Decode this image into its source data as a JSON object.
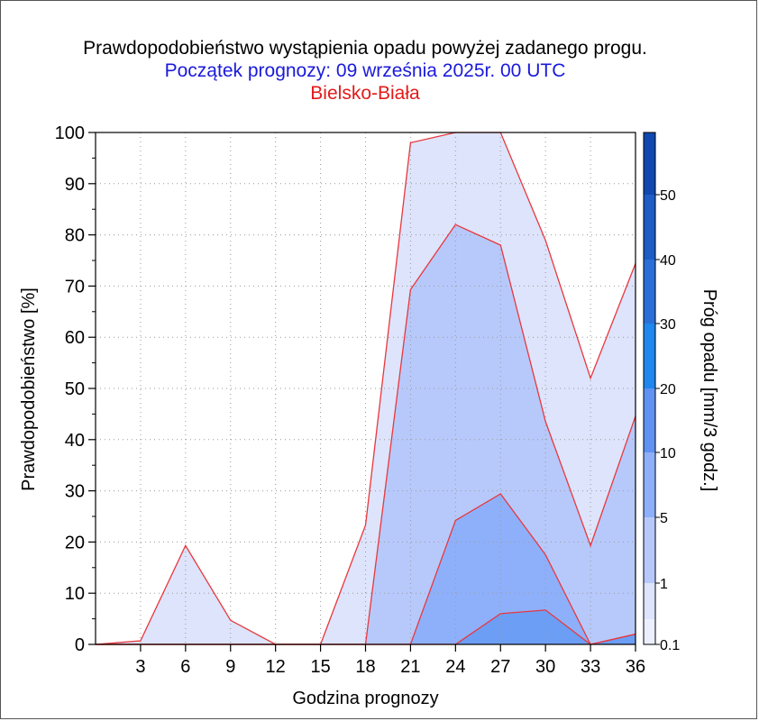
{
  "titles": {
    "line1": "Prawdopodobieństwo wystąpienia opadu powyżej zadanego progu.",
    "line2": "Początek prognozy: 09 września 2025r. 00 UTC",
    "line3": "Bielsko-Biała"
  },
  "colors": {
    "title1": "#000000",
    "title2": "#1a1adb",
    "title3": "#e31a1a",
    "contour_line": "#e8383d",
    "grid": "#9a9a9a"
  },
  "chart_data": {
    "type": "area",
    "title": "Prawdopodobieństwo wystąpienia opadu powyżej zadanego progu.",
    "xlabel": "Godzina prognozy",
    "ylabel": "Prawdopodobieństwo [%]",
    "xlim": [
      0,
      36
    ],
    "ylim": [
      0,
      100
    ],
    "grid": true,
    "x_ticks": [
      3,
      6,
      9,
      12,
      15,
      18,
      21,
      24,
      27,
      30,
      33,
      36
    ],
    "y_ticks": [
      0,
      10,
      20,
      30,
      40,
      50,
      60,
      70,
      80,
      90,
      100
    ],
    "x": [
      0,
      3,
      6,
      9,
      12,
      15,
      18,
      21,
      24,
      27,
      30,
      33,
      36
    ],
    "series": [
      {
        "name": "0.1",
        "color": "#dde4fb",
        "values": [
          0,
          0.7,
          19.3,
          4.7,
          0,
          0,
          23.3,
          98,
          100,
          100,
          78.9,
          52,
          74.4
        ]
      },
      {
        "name": "1",
        "color": "#b7c9fb",
        "values": [
          0,
          0,
          0,
          0,
          0,
          0,
          0,
          69.3,
          82,
          78,
          43.5,
          19.3,
          44.6
        ]
      },
      {
        "name": "5",
        "color": "#8eb0fb",
        "values": [
          0,
          0,
          0,
          0,
          0,
          0,
          0,
          0,
          24.2,
          29.4,
          17.5,
          0,
          2
        ]
      },
      {
        "name": "10",
        "color": "#6c9ef5",
        "values": [
          0,
          0,
          0,
          0,
          0,
          0,
          0,
          0,
          0,
          6,
          6.7,
          0,
          2
        ]
      }
    ],
    "colorbar": {
      "label": "Próg opadu [mm/3 godz.]",
      "tick_labels": [
        "0.1",
        "1",
        "5",
        "10",
        "20",
        "30",
        "40",
        "50"
      ],
      "bands": [
        "#eceffd",
        "#dde4fb",
        "#b7c9fb",
        "#8eb0fb",
        "#5f92f2",
        "#1f87ee",
        "#2a6fd8",
        "#1e5cc6",
        "#1148b0"
      ]
    }
  }
}
